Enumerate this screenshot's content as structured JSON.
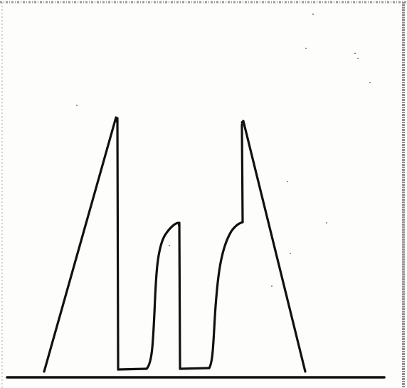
{
  "diagram": {
    "shape": "hand-drawn-line-profile",
    "ink_color": "#111111",
    "paper_color": "#fdfdfb",
    "frame_color": "#9a9a9a",
    "peaks": [
      {
        "name": "left-peak",
        "form": "triangle"
      },
      {
        "name": "middle-hump",
        "form": "rounded"
      },
      {
        "name": "right-peak",
        "form": "triangle-with-shoulder"
      }
    ]
  }
}
